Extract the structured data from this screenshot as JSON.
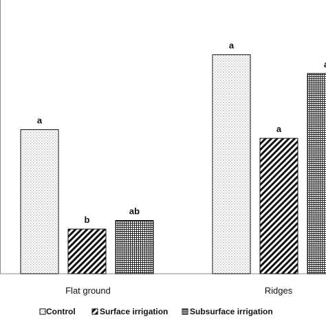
{
  "chart_data": {
    "type": "bar",
    "categories": [
      "Flat ground",
      "Ridges"
    ],
    "series": [
      {
        "name": "Control",
        "values": [
          100,
          152
        ],
        "labels": [
          "a",
          "a"
        ],
        "pattern": "dots"
      },
      {
        "name": "Surface irrigation",
        "values": [
          31,
          94
        ],
        "labels": [
          "b",
          "a"
        ],
        "pattern": "diagonal-hatch"
      },
      {
        "name": "Subsurface irrigation",
        "values": [
          37,
          139
        ],
        "labels": [
          "ab",
          "a"
        ],
        "pattern": "crosshatch"
      }
    ],
    "title": "",
    "xlabel": "",
    "ylabel": "",
    "ylim": [
      0,
      190
    ],
    "grid": false,
    "legend_position": "bottom"
  }
}
